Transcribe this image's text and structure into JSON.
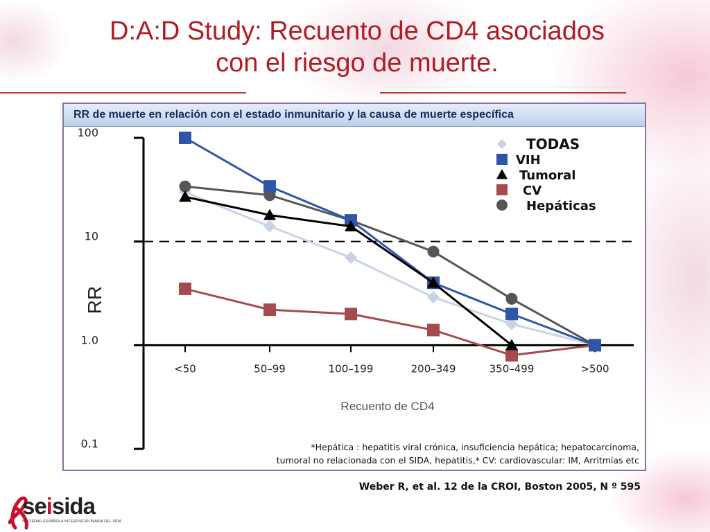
{
  "slide": {
    "title_line1": "D:A:D Study: Recuento de CD4 asociados",
    "title_line2": "con el riesgo de muerte."
  },
  "panel": {
    "header": "RR de muerte en relación con el estado inmunitario y la causa de muerte específica"
  },
  "footnote": {
    "line1": "*Hepática : hepatitis viral crónica, insuficiencia hepática; hepatocarcinoma,",
    "line2": "tumoral no relacionada con el SIDA, hepatitis,* CV: cardiovascular: IM, Arritmias etc"
  },
  "citation": "Weber R, et al. 12 de la CROI, Boston 2005, N º 595",
  "logo": {
    "part1": "se",
    "part2": "i",
    "part3": "sida",
    "tagline": "SOCIEDAD ESPAÑOLA INTERDISCIPLINARIA DEL SIDA"
  },
  "colors": {
    "title": "#b01c24",
    "todas": "#c9d3e4",
    "vih": "#2e55a7",
    "tumoral": "#000000",
    "cv": "#a54b50",
    "hepaticas": "#555555"
  },
  "chart_data": {
    "type": "line",
    "title": "",
    "xlabel": "Recuento de CD4",
    "ylabel": "RR",
    "y_scale": "log",
    "ylim": [
      0.1,
      100
    ],
    "y_ticks": [
      {
        "value": 100,
        "label": "100"
      },
      {
        "value": 10,
        "label": "10"
      },
      {
        "value": 1,
        "label": "1.0"
      },
      {
        "value": 0.1,
        "label": "0.1"
      }
    ],
    "reference_line": {
      "value": 10,
      "style": "dashed"
    },
    "categories": [
      "<50",
      "50–99",
      "100–199",
      "200–349",
      "350–499",
      ">500"
    ],
    "legend_position": "top-right",
    "series": [
      {
        "name": "TODAS",
        "marker": "diamond",
        "color": "#c9d3e4",
        "values": [
          30,
          14,
          7,
          2.9,
          1.6,
          1.0
        ]
      },
      {
        "name": "VIH",
        "marker": "square",
        "color": "#2e55a7",
        "values": [
          100,
          34,
          16,
          4,
          2,
          1.0
        ]
      },
      {
        "name": "Tumoral",
        "marker": "triangle",
        "color": "#000000",
        "values": [
          27,
          18,
          14,
          4,
          1.0,
          null
        ]
      },
      {
        "name": "CV",
        "marker": "square",
        "color": "#a54b50",
        "values": [
          3.5,
          2.2,
          2,
          1.4,
          0.8,
          1.0
        ]
      },
      {
        "name": "Hepáticas",
        "marker": "circle",
        "color": "#555555",
        "values": [
          34,
          28,
          16,
          8,
          2.8,
          1.0
        ]
      }
    ]
  }
}
